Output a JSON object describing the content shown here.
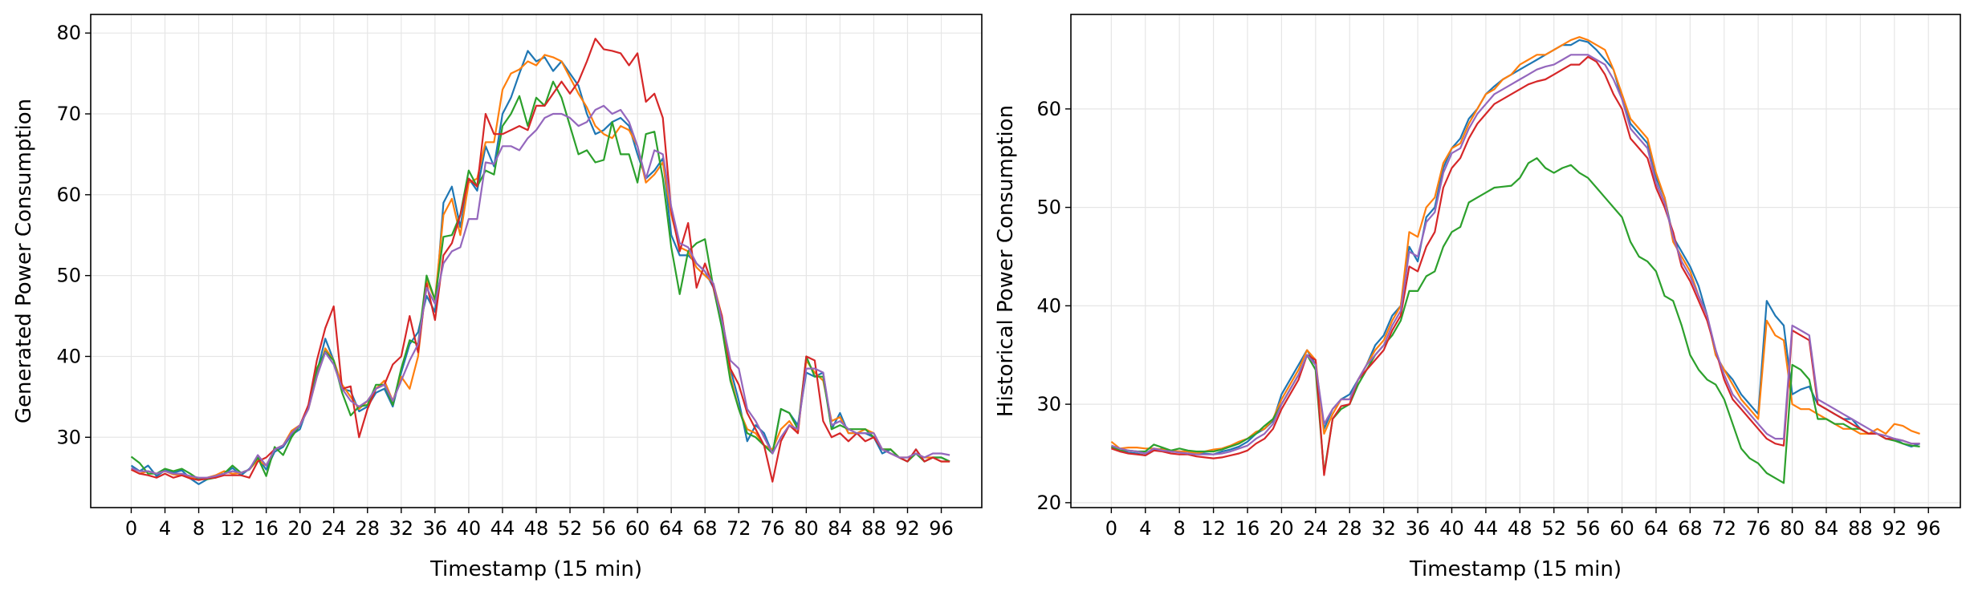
{
  "chart_data": [
    {
      "type": "line",
      "xlabel": "Timestamp (15 min)",
      "ylabel": "Generated Power Consumption",
      "xlim": [
        -4.8,
        100.8
      ],
      "ylim": [
        21.3,
        82.3
      ],
      "xticks": [
        0,
        4,
        8,
        12,
        16,
        20,
        24,
        28,
        32,
        36,
        40,
        44,
        48,
        52,
        56,
        60,
        64,
        68,
        72,
        76,
        80,
        84,
        88,
        92,
        96
      ],
      "yticks": [
        30,
        40,
        50,
        60,
        70,
        80
      ],
      "grid": true,
      "series": [
        {
          "color": "#1f77b4",
          "values": [
            26.5,
            25.8,
            26.5,
            25.2,
            25.9,
            25.6,
            25.9,
            24.9,
            24.2,
            24.8,
            25.3,
            25.5,
            26.2,
            25.3,
            26.1,
            27.5,
            26.0,
            28.2,
            28.8,
            30.3,
            31.0,
            34.0,
            38.0,
            42.2,
            39.5,
            36.0,
            35.7,
            33.2,
            33.8,
            35.5,
            36.0,
            33.8,
            38.0,
            41.5,
            43.0,
            47.5,
            45.5,
            59.0,
            61.0,
            56.0,
            62.0,
            60.5,
            66.0,
            63.5,
            70.0,
            72.0,
            75.0,
            77.8,
            76.5,
            77.0,
            75.3,
            76.5,
            75.0,
            73.5,
            70.0,
            67.5,
            68.0,
            69.0,
            69.5,
            68.5,
            65.0,
            62.0,
            63.0,
            64.5,
            55.0,
            52.5,
            52.5,
            51.5,
            50.5,
            48.5,
            44.0,
            38.5,
            34.5,
            29.5,
            31.5,
            30.5,
            28.0,
            33.5,
            33.0,
            31.5,
            38.0,
            37.5,
            38.0,
            31.0,
            33.0,
            30.5,
            30.5,
            30.5,
            30.0,
            28.0,
            28.5,
            27.5,
            27.0,
            28.5,
            27.0,
            27.5,
            27.5,
            27.0
          ]
        },
        {
          "color": "#ff7f0e",
          "values": [
            26.0,
            25.5,
            25.8,
            25.5,
            25.8,
            25.4,
            25.3,
            25.0,
            24.8,
            25.0,
            25.3,
            25.8,
            25.5,
            25.6,
            26.0,
            27.2,
            26.5,
            28.5,
            29.0,
            30.8,
            31.5,
            33.5,
            37.5,
            41.0,
            39.5,
            36.5,
            35.0,
            33.5,
            34.5,
            36.0,
            37.0,
            34.5,
            37.5,
            36.0,
            40.0,
            49.5,
            47.0,
            57.5,
            59.5,
            55.0,
            61.5,
            62.0,
            66.5,
            66.5,
            73.0,
            75.0,
            75.5,
            76.5,
            76.0,
            77.3,
            77.0,
            76.5,
            74.5,
            72.5,
            70.8,
            68.5,
            67.5,
            67.0,
            68.5,
            68.0,
            66.0,
            61.5,
            62.5,
            64.0,
            57.5,
            53.5,
            53.0,
            51.0,
            50.0,
            49.0,
            45.0,
            37.5,
            33.5,
            31.0,
            30.5,
            29.0,
            28.5,
            31.0,
            32.0,
            30.5,
            39.5,
            38.0,
            37.0,
            32.0,
            32.5,
            30.5,
            30.5,
            31.0,
            30.5,
            28.5,
            28.5,
            27.5,
            27.5,
            28.0,
            27.5,
            27.5,
            27.0,
            27.0
          ]
        },
        {
          "color": "#2ca02c",
          "values": [
            27.6,
            26.8,
            25.5,
            25.5,
            26.1,
            25.8,
            26.1,
            25.5,
            24.8,
            24.8,
            25.0,
            25.5,
            26.5,
            25.6,
            26.0,
            27.5,
            25.2,
            28.8,
            27.8,
            30.0,
            31.5,
            33.8,
            38.5,
            40.6,
            39.5,
            35.5,
            32.7,
            33.8,
            34.0,
            36.5,
            36.5,
            34.0,
            38.5,
            42.0,
            41.5,
            50.0,
            47.0,
            54.8,
            55.0,
            57.5,
            63.0,
            61.0,
            63.0,
            62.5,
            68.5,
            70.0,
            72.2,
            68.5,
            72.0,
            71.0,
            74.0,
            72.0,
            68.5,
            65.0,
            65.5,
            64.0,
            64.3,
            69.0,
            65.0,
            65.0,
            61.5,
            67.5,
            67.8,
            62.0,
            53.5,
            47.7,
            53.0,
            54.0,
            54.5,
            48.5,
            43.5,
            37.0,
            33.5,
            30.5,
            30.0,
            29.0,
            28.0,
            33.5,
            33.0,
            31.0,
            40.0,
            37.5,
            37.5,
            31.0,
            31.5,
            31.0,
            31.0,
            31.0,
            30.0,
            28.5,
            28.5,
            27.5,
            27.0,
            28.0,
            27.0,
            27.5,
            27.5,
            27.0
          ]
        },
        {
          "color": "#d62728",
          "values": [
            26.0,
            25.5,
            25.3,
            25.0,
            25.5,
            25.0,
            25.3,
            24.9,
            24.7,
            24.9,
            25.0,
            25.3,
            25.3,
            25.3,
            25.0,
            27.0,
            27.5,
            28.5,
            29.0,
            30.5,
            31.5,
            34.0,
            39.5,
            43.5,
            46.2,
            36.0,
            36.3,
            30.0,
            33.5,
            36.0,
            36.5,
            39.0,
            40.0,
            45.0,
            40.5,
            49.0,
            44.5,
            52.5,
            54.0,
            57.5,
            62.0,
            61.0,
            70.0,
            67.5,
            67.5,
            68.0,
            68.5,
            68.0,
            71.0,
            71.0,
            72.5,
            74.0,
            72.5,
            74.0,
            76.5,
            79.3,
            78.0,
            77.8,
            77.5,
            76.0,
            77.5,
            71.5,
            72.5,
            69.5,
            58.0,
            53.0,
            56.5,
            48.5,
            51.5,
            48.5,
            45.0,
            38.5,
            36.5,
            33.0,
            31.0,
            29.0,
            24.5,
            29.5,
            31.5,
            30.5,
            40.0,
            39.5,
            32.0,
            30.0,
            30.5,
            29.5,
            30.5,
            29.5,
            30.0,
            28.5,
            28.0,
            27.5,
            27.0,
            28.5,
            27.0,
            27.5,
            27.0,
            27.0
          ]
        },
        {
          "color": "#9467bd",
          "values": [
            26.2,
            25.8,
            25.8,
            25.5,
            25.8,
            25.5,
            25.5,
            25.2,
            25.0,
            25.0,
            25.2,
            25.5,
            25.8,
            25.6,
            26.0,
            27.8,
            26.5,
            28.5,
            29.0,
            30.5,
            31.5,
            33.5,
            37.5,
            40.5,
            39.0,
            36.0,
            34.5,
            33.8,
            34.5,
            36.0,
            36.5,
            34.5,
            37.0,
            39.5,
            41.5,
            48.5,
            46.5,
            51.5,
            53.0,
            53.5,
            57.0,
            57.0,
            64.0,
            63.8,
            66.0,
            66.0,
            65.5,
            67.0,
            68.0,
            69.5,
            70.0,
            70.0,
            69.5,
            68.5,
            69.0,
            70.5,
            71.0,
            70.0,
            70.5,
            69.0,
            66.0,
            62.0,
            65.5,
            65.0,
            58.5,
            54.0,
            53.5,
            51.5,
            50.5,
            49.0,
            44.5,
            39.5,
            38.5,
            33.5,
            32.0,
            30.0,
            28.0,
            30.0,
            31.5,
            31.0,
            38.5,
            38.5,
            38.0,
            31.5,
            32.0,
            31.0,
            30.5,
            30.5,
            30.5,
            28.5,
            28.0,
            27.5,
            27.5,
            28.0,
            27.5,
            28.0,
            28.0,
            27.8
          ]
        }
      ]
    },
    {
      "type": "line",
      "xlabel": "Timestamp (15 min)",
      "ylabel": "Historical Power Consumption",
      "xlim": [
        -4.75,
        99.75
      ],
      "ylim": [
        19.5,
        69.6
      ],
      "xticks": [
        0,
        4,
        8,
        12,
        16,
        20,
        24,
        28,
        32,
        36,
        40,
        44,
        48,
        52,
        56,
        60,
        64,
        68,
        72,
        76,
        80,
        84,
        88,
        92,
        96
      ],
      "yticks": [
        20,
        30,
        40,
        50,
        60
      ],
      "grid": true,
      "series": [
        {
          "color": "#1f77b4",
          "values": [
            25.6,
            25.3,
            25.1,
            25.0,
            24.8,
            25.3,
            25.5,
            25.3,
            25.2,
            25.2,
            25.0,
            25.0,
            24.9,
            25.2,
            25.4,
            25.7,
            26.2,
            27.0,
            27.5,
            28.3,
            31.0,
            32.5,
            34.0,
            35.5,
            34.0,
            27.5,
            29.5,
            30.5,
            31.0,
            32.5,
            34.0,
            36.0,
            37.0,
            39.0,
            40.0,
            46.0,
            44.5,
            49.0,
            50.0,
            54.0,
            56.0,
            57.0,
            59.0,
            60.0,
            61.5,
            62.3,
            63.0,
            63.5,
            64.0,
            64.5,
            65.0,
            65.5,
            66.0,
            66.5,
            66.5,
            67.0,
            66.8,
            66.0,
            65.0,
            64.0,
            61.0,
            58.5,
            57.5,
            56.5,
            53.0,
            51.0,
            47.0,
            45.5,
            44.0,
            42.0,
            39.0,
            35.0,
            33.5,
            32.5,
            31.0,
            30.0,
            29.0,
            40.5,
            39.0,
            38.0,
            31.0,
            31.5,
            31.8,
            30.0,
            29.5,
            29.0,
            28.5,
            28.5,
            27.5,
            27.0,
            27.0,
            26.5,
            26.5,
            26.0,
            25.7,
            26.0
          ]
        },
        {
          "color": "#ff7f0e",
          "values": [
            26.2,
            25.5,
            25.6,
            25.6,
            25.5,
            25.5,
            25.4,
            25.3,
            25.2,
            25.2,
            25.0,
            25.2,
            25.4,
            25.5,
            25.8,
            26.2,
            26.5,
            27.2,
            27.5,
            28.5,
            30.5,
            32.0,
            33.5,
            35.5,
            34.5,
            27.0,
            29.0,
            30.5,
            30.5,
            32.5,
            34.0,
            35.5,
            36.5,
            38.5,
            40.0,
            47.5,
            47.0,
            50.0,
            51.0,
            54.5,
            56.0,
            56.5,
            58.5,
            60.0,
            61.5,
            62.0,
            63.0,
            63.5,
            64.5,
            65.0,
            65.5,
            65.5,
            66.0,
            66.5,
            67.0,
            67.3,
            67.0,
            66.5,
            66.0,
            64.0,
            61.5,
            59.0,
            58.0,
            57.0,
            53.5,
            51.0,
            46.5,
            45.0,
            43.5,
            41.0,
            39.0,
            35.0,
            33.5,
            32.0,
            30.5,
            29.5,
            28.5,
            38.5,
            37.0,
            36.5,
            30.0,
            29.5,
            29.5,
            29.0,
            28.5,
            28.0,
            27.5,
            27.5,
            27.0,
            27.0,
            27.5,
            27.0,
            28.0,
            27.8,
            27.3,
            27.0
          ]
        },
        {
          "color": "#2ca02c",
          "values": [
            25.7,
            25.3,
            25.3,
            25.2,
            25.2,
            25.9,
            25.6,
            25.3,
            25.5,
            25.3,
            25.2,
            25.2,
            25.2,
            25.4,
            25.7,
            26.0,
            26.5,
            27.0,
            27.8,
            28.5,
            30.0,
            31.5,
            33.0,
            35.0,
            33.5,
            23.0,
            28.5,
            29.5,
            30.0,
            32.0,
            33.5,
            35.0,
            36.0,
            37.0,
            38.5,
            41.5,
            41.5,
            43.0,
            43.5,
            46.0,
            47.5,
            48.0,
            50.5,
            51.0,
            51.5,
            52.0,
            52.1,
            52.2,
            53.0,
            54.5,
            55.0,
            54.0,
            53.5,
            54.0,
            54.3,
            53.5,
            53.0,
            52.0,
            51.0,
            50.0,
            49.0,
            46.5,
            45.0,
            44.5,
            43.5,
            41.0,
            40.5,
            38.0,
            35.0,
            33.5,
            32.5,
            32.0,
            30.5,
            28.0,
            25.5,
            24.5,
            24.0,
            23.0,
            22.5,
            22.0,
            34.0,
            33.5,
            32.5,
            28.5,
            28.5,
            28.0,
            28.0,
            27.5,
            27.5,
            27.0,
            27.0,
            26.5,
            26.3,
            26.0,
            25.8,
            25.7
          ]
        },
        {
          "color": "#d62728",
          "values": [
            25.5,
            25.2,
            25.0,
            24.9,
            24.8,
            25.3,
            25.2,
            25.0,
            24.9,
            24.9,
            24.7,
            24.6,
            24.5,
            24.6,
            24.8,
            25.0,
            25.3,
            26.0,
            26.5,
            27.5,
            29.5,
            31.0,
            32.5,
            35.0,
            34.5,
            22.8,
            28.5,
            29.8,
            30.0,
            32.5,
            33.5,
            34.5,
            35.5,
            37.5,
            39.0,
            44.0,
            43.5,
            46.0,
            47.5,
            52.0,
            54.0,
            55.0,
            57.0,
            58.5,
            59.5,
            60.5,
            61.0,
            61.5,
            62.0,
            62.5,
            62.8,
            63.0,
            63.5,
            64.0,
            64.5,
            64.5,
            65.3,
            64.8,
            63.5,
            61.5,
            60.0,
            57.0,
            56.0,
            55.0,
            52.0,
            50.0,
            47.5,
            44.0,
            42.5,
            40.5,
            38.5,
            35.5,
            32.5,
            30.5,
            29.5,
            28.5,
            27.5,
            26.5,
            26.0,
            25.8,
            37.5,
            37.0,
            36.5,
            30.0,
            29.5,
            29.0,
            28.5,
            28.0,
            27.5,
            27.0,
            27.0,
            26.5,
            26.5,
            26.3,
            26.0,
            26.0
          ]
        },
        {
          "color": "#9467bd",
          "values": [
            25.8,
            25.5,
            25.3,
            25.2,
            25.0,
            25.5,
            25.3,
            25.2,
            25.1,
            25.0,
            24.9,
            24.9,
            24.9,
            25.0,
            25.2,
            25.5,
            25.8,
            26.5,
            27.0,
            28.0,
            30.0,
            31.5,
            33.0,
            35.0,
            34.0,
            28.0,
            29.5,
            30.5,
            30.5,
            32.5,
            34.0,
            35.0,
            36.0,
            38.0,
            39.5,
            45.5,
            45.0,
            48.5,
            49.5,
            53.5,
            55.5,
            56.0,
            58.0,
            59.5,
            60.5,
            61.5,
            62.0,
            62.5,
            63.0,
            63.5,
            64.0,
            64.3,
            64.5,
            65.0,
            65.5,
            65.5,
            65.5,
            65.0,
            64.5,
            63.0,
            61.0,
            58.0,
            57.0,
            56.0,
            52.5,
            50.5,
            47.0,
            44.5,
            43.0,
            41.0,
            39.0,
            35.5,
            33.0,
            31.0,
            30.0,
            29.0,
            28.0,
            27.0,
            26.5,
            26.5,
            38.0,
            37.5,
            37.0,
            30.5,
            30.0,
            29.5,
            29.0,
            28.5,
            28.0,
            27.5,
            27.0,
            26.8,
            26.5,
            26.3,
            26.0,
            26.0
          ]
        }
      ]
    }
  ]
}
